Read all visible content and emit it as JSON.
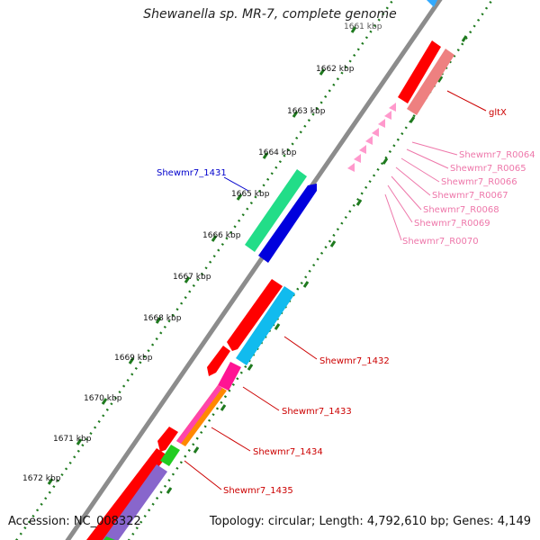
{
  "title": "Shewanella sp. MR-7, complete genome",
  "footer": {
    "accession": "Accession: NC_008322",
    "topology": "Topology: circular; Length: 4,792,610 bp; Genes: 4,149"
  },
  "ticks": {
    "partial": "1661 kbp",
    "labels": [
      "1662 kbp",
      "1663 kbp",
      "1664 kbp",
      "1665 kbp",
      "1666 kbp",
      "1667 kbp",
      "1668 kbp",
      "1669 kbp",
      "1670 kbp",
      "1671 kbp",
      "1672 kbp"
    ]
  },
  "colors": {
    "backbone": "#888888",
    "forward_cds": "#ff0000",
    "reverse_cds": "#ff7777",
    "trna": "#ff99cc",
    "tick_dots": "#1f7a1f",
    "label_blue": "#0000cc",
    "label_red": "#cc0000",
    "label_pink": "#ee77aa"
  },
  "genes": {
    "glt": "gltX",
    "s1431": "Shewmr7_1431",
    "s1432": "Shewmr7_1432",
    "s1433": "Shewmr7_1433",
    "s1434": "Shewmr7_1434",
    "s1435": "Shewmr7_1435",
    "r0064": "Shewmr7_R0064",
    "r0065": "Shewmr7_R0065",
    "r0066": "Shewmr7_R0066",
    "r0067": "Shewmr7_R0067",
    "r0068": "Shewmr7_R0068",
    "r0069": "Shewmr7_R0069",
    "r0070": "Shewmr7_R0070"
  }
}
